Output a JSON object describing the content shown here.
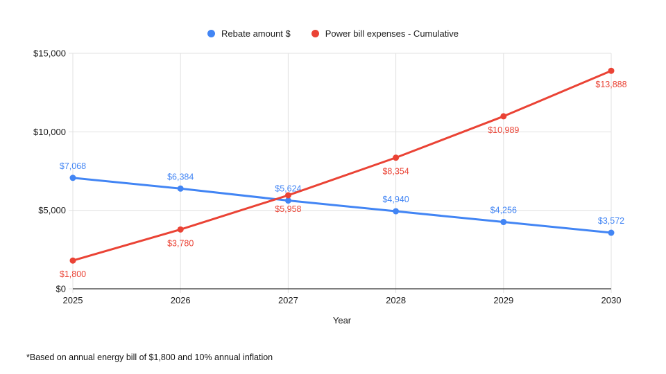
{
  "chart_data": {
    "type": "line",
    "categories": [
      "2025",
      "2026",
      "2027",
      "2028",
      "2029",
      "2030"
    ],
    "series": [
      {
        "name": "Rebate amount $",
        "color": "#4285f4",
        "values": [
          7068,
          6384,
          5624,
          4940,
          4256,
          3572
        ],
        "point_labels": [
          "$7,068",
          "$6,384",
          "$5,624",
          "$4,940",
          "$4,256",
          "$3,572"
        ],
        "label_position": "above"
      },
      {
        "name": "Power bill expenses - Cumulative",
        "color": "#ea4335",
        "values": [
          1800,
          3780,
          5958,
          8354,
          10989,
          13888
        ],
        "point_labels": [
          "$1,800",
          "$3,780",
          "$5,958",
          "$8,354",
          "$10,989",
          "$13,888"
        ],
        "label_position": "below"
      }
    ],
    "title": "",
    "xlabel": "Year",
    "ylabel": "",
    "ylim": [
      0,
      15000
    ],
    "yticks": [
      {
        "value": 0,
        "label": "$0"
      },
      {
        "value": 5000,
        "label": "$5,000"
      },
      {
        "value": 10000,
        "label": "$10,000"
      },
      {
        "value": 15000,
        "label": "$15,000"
      }
    ],
    "grid": true,
    "legend_position": "top"
  },
  "colors": {
    "series_blue": "#4285f4",
    "series_red": "#ea4335",
    "gridline": "#e0e0e0",
    "axis_line": "#333333",
    "axis_text": "#1a1a1a"
  },
  "footnote": "*Based on annual energy bill of $1,800 and 10% annual inflation"
}
